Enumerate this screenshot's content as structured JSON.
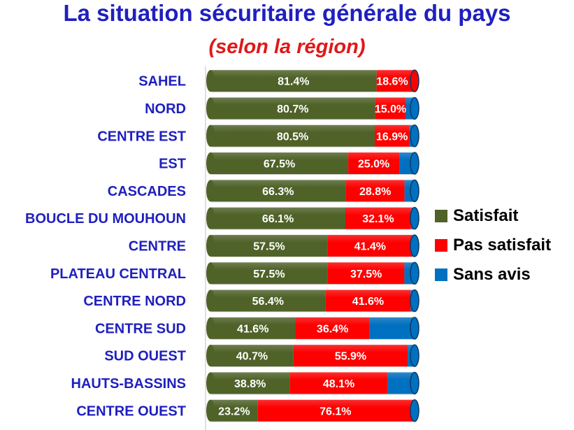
{
  "title": "La  situation sécuritaire générale du pays",
  "subtitle": "(selon la région)",
  "chart_data": {
    "type": "bar",
    "orientation": "horizontal",
    "stacked": true,
    "xlim": [
      0,
      100
    ],
    "legend_position": "right",
    "categories": [
      "SAHEL",
      "NORD",
      "CENTRE EST",
      "EST",
      "CASCADES",
      "BOUCLE DU MOUHOUN",
      "CENTRE",
      "PLATEAU CENTRAL",
      "CENTRE NORD",
      "CENTRE SUD",
      "SUD OUEST",
      "HAUTS-BASSINS",
      "CENTRE OUEST"
    ],
    "series": [
      {
        "name": "Satisfait",
        "color": "#4f6228",
        "values": [
          81.4,
          80.7,
          80.5,
          67.5,
          66.3,
          66.1,
          57.5,
          57.5,
          56.4,
          41.6,
          40.7,
          38.8,
          23.2
        ],
        "labels": [
          "81.4%",
          "80.7%",
          "80.5%",
          "67.5%",
          "66.3%",
          "66.1%",
          "57.5%",
          "57.5%",
          "56.4%",
          "41.6%",
          "40.7%",
          "38.8%",
          "23.2%"
        ]
      },
      {
        "name": "Pas satisfait",
        "color": "#ff0000",
        "values": [
          18.6,
          15.0,
          16.9,
          25.0,
          28.8,
          32.1,
          41.4,
          37.5,
          41.6,
          36.4,
          55.9,
          48.1,
          76.1
        ],
        "labels": [
          "18.6%",
          "15.0%",
          "16.9%",
          "25.0%",
          "28.8%",
          "32.1%",
          "41.4%",
          "37.5%",
          "41.6%",
          "36.4%",
          "55.9%",
          "48.1%",
          "76.1%"
        ]
      },
      {
        "name": "Sans avis",
        "color": "#0070c0",
        "values": [
          0.0,
          4.3,
          2.6,
          7.5,
          4.9,
          1.8,
          1.1,
          5.0,
          2.0,
          22.0,
          3.4,
          13.1,
          0.7
        ],
        "labels": []
      }
    ]
  }
}
